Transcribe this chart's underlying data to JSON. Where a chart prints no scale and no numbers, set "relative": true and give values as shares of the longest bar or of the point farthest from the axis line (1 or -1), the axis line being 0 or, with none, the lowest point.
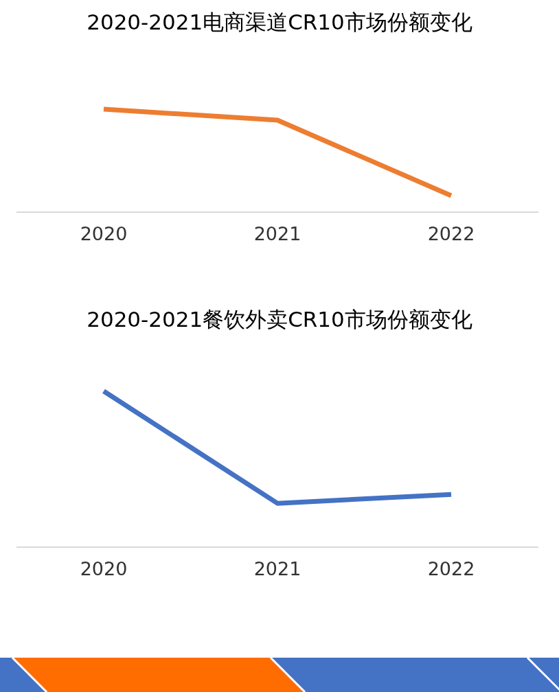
{
  "chart_data": [
    {
      "type": "line",
      "title": "2020-2021电商渠道CR10市场份额变化",
      "categories": [
        "2020",
        "2021",
        "2022"
      ],
      "relative": true,
      "grid": false,
      "legend": false,
      "marker": "none",
      "series": [
        {
          "color": "#ed7d31",
          "values": [
            1,
            0.893,
            0.16
          ]
        }
      ]
    },
    {
      "type": "line",
      "title": "2020-2021餐饮外卖CR10市场份额变化",
      "categories": [
        "2020",
        "2021",
        "2022"
      ],
      "relative": true,
      "grid": false,
      "legend": false,
      "marker": "none",
      "series": [
        {
          "color": "#4472c4",
          "values": [
            1,
            0.281,
            0.338
          ]
        }
      ]
    }
  ]
}
